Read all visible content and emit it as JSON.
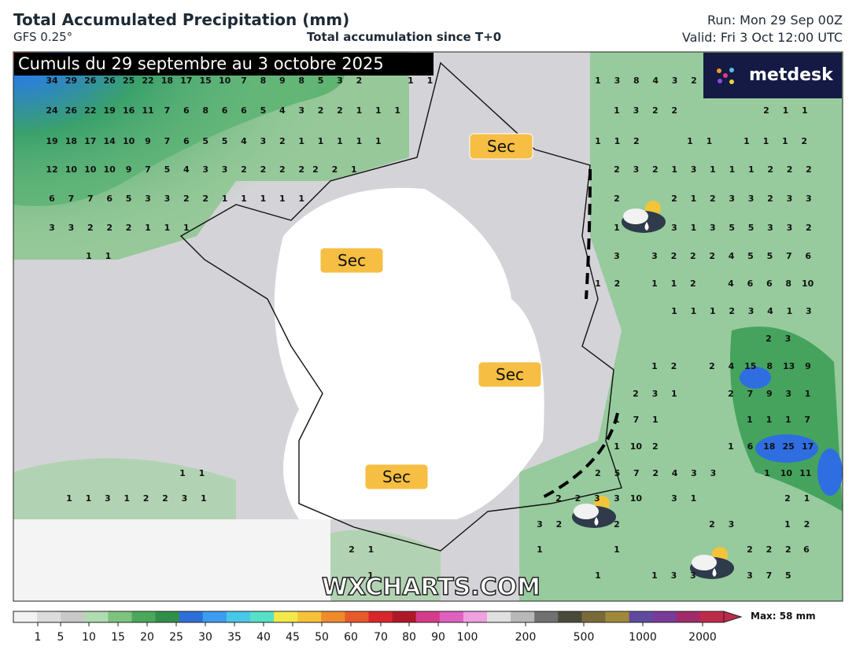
{
  "header": {
    "title": "Total Accumulated Precipitation (mm)",
    "model": "GFS 0.25°",
    "subtitle": "Total accumulation since T+0",
    "run": "Run: Mon 29 Sep 00Z",
    "valid": "Valid: Fri 3 Oct 12:00 UTC"
  },
  "banner": "Cumuls du 29 septembre au 3 octobre 2025",
  "logo": "metdesk",
  "watermark": "WXCHARTS.COM",
  "dry_labels": [
    "Sec",
    "Sec",
    "Sec",
    "Sec"
  ],
  "map_values": [
    [
      34,
      29,
      26,
      26,
      25,
      22,
      18,
      17,
      15,
      10,
      7,
      8,
      9,
      8,
      5,
      3,
      2
    ],
    [
      1,
      1
    ],
    [
      1,
      3,
      8,
      4,
      3,
      2
    ],
    [
      24,
      26,
      22,
      19,
      16,
      11,
      7,
      6,
      8,
      6,
      6,
      5,
      4,
      3,
      2,
      2,
      1,
      1,
      1
    ],
    [
      1,
      3,
      2,
      2
    ],
    [
      2,
      1,
      1
    ],
    [
      19,
      18,
      17,
      14,
      10,
      9,
      7,
      6,
      5,
      5,
      4,
      3,
      2,
      1,
      1,
      1,
      1,
      1
    ],
    [
      1,
      1,
      2
    ],
    [
      1,
      1
    ],
    [
      1,
      1,
      1,
      2
    ],
    [
      12,
      10,
      10,
      10,
      9,
      7,
      5,
      4,
      3,
      3,
      2,
      2,
      2,
      2
    ],
    [
      2,
      2,
      1
    ],
    [
      2,
      3,
      2,
      1,
      3,
      1,
      1,
      1,
      2,
      2,
      2
    ],
    [
      6,
      7,
      7,
      6,
      5,
      3,
      3,
      2,
      2,
      1,
      1,
      1,
      1,
      1
    ],
    [
      2
    ],
    [
      2,
      1,
      2,
      3,
      3,
      2,
      3,
      3
    ],
    [
      3,
      3,
      2,
      2,
      2,
      1,
      1,
      1
    ],
    [
      1
    ],
    [
      3,
      1,
      3,
      5,
      5,
      3,
      3,
      2
    ],
    [
      1,
      1
    ],
    [
      3
    ],
    [
      3,
      2,
      2,
      2,
      4,
      5,
      5,
      7,
      6
    ],
    [
      1,
      2
    ],
    [
      1,
      1,
      2
    ],
    [
      4,
      6,
      6,
      8,
      10
    ],
    [
      1,
      1,
      1,
      2,
      3,
      4,
      1,
      3
    ],
    [
      2,
      3
    ],
    [
      1,
      2
    ],
    [
      2,
      4,
      15,
      8,
      13,
      9
    ],
    [
      2,
      3,
      1
    ],
    [
      2,
      7,
      9,
      3,
      1
    ],
    [
      1,
      7,
      1
    ],
    [
      1,
      1,
      1,
      7
    ],
    [
      1,
      10,
      2
    ],
    [
      1,
      6,
      18,
      25,
      17
    ],
    [
      1,
      1
    ],
    [
      2,
      5,
      7,
      2,
      4,
      3,
      3
    ],
    [
      1,
      10,
      11
    ],
    [
      1,
      1,
      3,
      1,
      2,
      2,
      3,
      1
    ],
    [
      2,
      2,
      3
    ],
    [
      3,
      10
    ],
    [
      3,
      1
    ],
    [
      2,
      1
    ],
    [
      3,
      2
    ],
    [
      2
    ],
    [
      2,
      3
    ],
    [
      1,
      2
    ],
    [
      2,
      1
    ],
    [
      1
    ],
    [
      1
    ],
    [
      2,
      2,
      2
    ],
    [
      6
    ],
    [
      1
    ],
    [
      1
    ],
    [
      1,
      3,
      3
    ],
    [
      3,
      7,
      5
    ]
  ],
  "colorbar": {
    "ticks": [
      1,
      5,
      10,
      15,
      20,
      25,
      30,
      35,
      40,
      45,
      50,
      60,
      70,
      80,
      90,
      100,
      200,
      500,
      1000,
      2000
    ],
    "max_label": "Max: 58 mm"
  }
}
